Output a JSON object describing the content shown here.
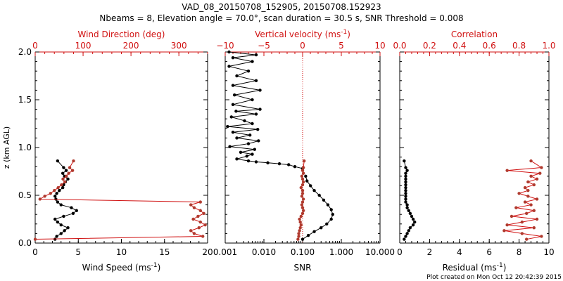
{
  "title": {
    "line1": "VAD_08_20150708_152905, 20150708.152923",
    "line2": "Nbeams = 8, Elevation angle = 70.0°, scan duration = 30.5 s, SNR Threshold = 0.008"
  },
  "footer": "Plot created on Mon Oct 12 20:42:39 2015",
  "colors": {
    "red": "#d01010",
    "brown": "#b03a2e",
    "black": "#000000"
  },
  "chart_data": [
    {
      "type": "line",
      "name": "wind",
      "ylabel": "z (km AGL)",
      "ylim": [
        0,
        2.0
      ],
      "yticks": [
        0.0,
        0.5,
        1.0,
        1.5,
        2.0
      ],
      "ytick_labels": [
        "0.0",
        "0.5",
        "1.0",
        "1.5",
        "2.0"
      ],
      "xlabel_bottom": "Wind Speed (ms",
      "xlabel_bottom_sup": "-1",
      "xlabel_bottom_end": ")",
      "xlim_bottom": [
        0,
        20
      ],
      "xticks_bottom": [
        0,
        5,
        10,
        15,
        20
      ],
      "xtick_labels_bottom": [
        "0",
        "5",
        "10",
        "15",
        "20"
      ],
      "xlabel_top": "Wind Direction (deg)",
      "xlim_top": [
        0,
        360
      ],
      "xticks_top": [
        0,
        100,
        200,
        300
      ],
      "xtick_labels_top": [
        "0",
        "100",
        "200",
        "300"
      ],
      "series": [
        {
          "name": "Wind Speed",
          "axis": "bottom",
          "color": "#000000",
          "x": [
            2.3,
            2.5,
            3.0,
            3.4,
            3.8,
            3.0,
            2.6,
            2.3,
            3.3,
            4.4,
            4.8,
            4.2,
            3.0,
            2.6,
            2.4,
            2.3,
            2.5,
            2.8,
            3.2,
            3.3,
            3.5,
            3.8,
            3.4,
            3.2,
            3.6,
            3.3,
            2.6
          ],
          "y": [
            0.04,
            0.07,
            0.1,
            0.13,
            0.16,
            0.19,
            0.22,
            0.25,
            0.28,
            0.31,
            0.34,
            0.37,
            0.4,
            0.43,
            0.46,
            0.49,
            0.52,
            0.55,
            0.58,
            0.61,
            0.64,
            0.67,
            0.7,
            0.73,
            0.76,
            0.79,
            0.86
          ]
        },
        {
          "name": "Wind Direction",
          "axis": "top",
          "color": "#b03a2e",
          "x": [
            0,
            350,
            332,
            325,
            342,
            355,
            345,
            330,
            340,
            352,
            345,
            332,
            325,
            345,
            10,
            20,
            32,
            40,
            48,
            55,
            62,
            58,
            65,
            70,
            78,
            72,
            80
          ],
          "y": [
            0.04,
            0.07,
            0.1,
            0.13,
            0.16,
            0.19,
            0.22,
            0.25,
            0.28,
            0.31,
            0.34,
            0.37,
            0.4,
            0.43,
            0.46,
            0.49,
            0.52,
            0.55,
            0.58,
            0.61,
            0.64,
            0.67,
            0.7,
            0.73,
            0.76,
            0.79,
            0.86
          ]
        }
      ]
    },
    {
      "type": "line",
      "name": "vertical",
      "ylim": [
        0,
        2.0
      ],
      "xlabel_bottom": "SNR",
      "xscale_bottom": "log",
      "xlim_bottom": [
        0.001,
        10
      ],
      "xticks_bottom": [
        0.001,
        0.01,
        0.1,
        1,
        10
      ],
      "xtick_labels_bottom": [
        "0.001",
        "0.010",
        "0.100",
        "1.000",
        "10.000"
      ],
      "xlabel_top": "Vertical velocity (ms",
      "xlabel_top_sup": "-1",
      "xlabel_top_end": ")",
      "xlim_top": [
        -10,
        10
      ],
      "xticks_top": [
        -10,
        -5,
        0,
        5,
        10
      ],
      "xtick_labels_top": [
        "−10",
        "−5",
        "0",
        "5",
        "10"
      ],
      "zero_line": 0,
      "series": [
        {
          "name": "Vertical velocity",
          "axis": "top",
          "color": "#000000",
          "x": [
            -9.5,
            -6,
            -9,
            -6.5,
            -9.5,
            -7,
            -8.5,
            -6,
            -9,
            -5.5,
            -8.8,
            -6.5,
            -9,
            -5.5,
            -8.6,
            -6,
            -9.2,
            -7.5,
            -6.5,
            -9.7,
            -5.8,
            -9.0,
            -6.8,
            -8.5,
            -5.7,
            -7.0,
            -9.4,
            -6.2,
            -8.0,
            -6.5,
            -7.2,
            -8.5,
            -7.0,
            -6.0,
            -4.5,
            -3.0,
            -1.8,
            -1.0,
            0.0
          ],
          "y": [
            2.0,
            1.97,
            1.94,
            1.9,
            1.85,
            1.8,
            1.75,
            1.7,
            1.65,
            1.6,
            1.55,
            1.5,
            1.45,
            1.4,
            1.38,
            1.35,
            1.32,
            1.28,
            1.25,
            1.22,
            1.19,
            1.16,
            1.13,
            1.1,
            1.07,
            1.04,
            1.01,
            0.98,
            0.95,
            0.93,
            0.91,
            0.88,
            0.86,
            0.85,
            0.84,
            0.83,
            0.82,
            0.8,
            0.78
          ]
        },
        {
          "name": "SNR",
          "axis": "bottom",
          "color": "#000000",
          "x": [
            0.1,
            0.14,
            0.2,
            0.3,
            0.42,
            0.55,
            0.6,
            0.55,
            0.45,
            0.35,
            0.27,
            0.2,
            0.16,
            0.13,
            0.12
          ],
          "y": [
            0.04,
            0.08,
            0.12,
            0.16,
            0.2,
            0.25,
            0.3,
            0.35,
            0.4,
            0.45,
            0.5,
            0.55,
            0.6,
            0.65,
            0.7
          ]
        },
        {
          "name": "Vertical velocity (lower)",
          "axis": "top",
          "color": "#b03a2e",
          "x": [
            -0.6,
            -0.5,
            -0.5,
            -0.4,
            -0.3,
            -0.2,
            -0.3,
            -0.4,
            -0.2,
            0.0,
            0.1,
            0.0,
            -0.1,
            0.0,
            0.1,
            -0.1,
            0.0,
            0.0,
            -0.2,
            0.0,
            0.1,
            0.0,
            -0.1,
            0.1,
            0.0,
            0.1,
            0.2
          ],
          "y": [
            0.04,
            0.07,
            0.1,
            0.13,
            0.16,
            0.19,
            0.22,
            0.25,
            0.28,
            0.31,
            0.34,
            0.37,
            0.4,
            0.43,
            0.46,
            0.49,
            0.52,
            0.55,
            0.58,
            0.61,
            0.64,
            0.67,
            0.7,
            0.73,
            0.76,
            0.79,
            0.86
          ]
        }
      ]
    },
    {
      "type": "line",
      "name": "residual",
      "ylim": [
        0,
        2.0
      ],
      "xlabel_bottom": "Residual (ms",
      "xlabel_bottom_sup": "-1",
      "xlabel_bottom_end": ")",
      "xlim_bottom": [
        0,
        10
      ],
      "xticks_bottom": [
        0,
        2,
        4,
        6,
        8,
        10
      ],
      "xtick_labels_bottom": [
        "0",
        "2",
        "4",
        "6",
        "8",
        "10"
      ],
      "xlabel_top": "Correlation",
      "xlim_top": [
        0,
        1.0
      ],
      "xticks_top": [
        0,
        0.2,
        0.4,
        0.6,
        0.8,
        1.0
      ],
      "xtick_labels_top": [
        "0.0",
        "0.2",
        "0.4",
        "0.6",
        "0.8",
        "1.0"
      ],
      "series": [
        {
          "name": "Residual",
          "axis": "bottom",
          "color": "#000000",
          "x": [
            0.3,
            0.4,
            0.5,
            0.6,
            0.7,
            0.9,
            1.0,
            0.9,
            0.8,
            0.7,
            0.6,
            0.5,
            0.5,
            0.4,
            0.4,
            0.4,
            0.4,
            0.4,
            0.4,
            0.4,
            0.4,
            0.4,
            0.4,
            0.4,
            0.5,
            0.4,
            0.3
          ],
          "y": [
            0.04,
            0.07,
            0.1,
            0.13,
            0.16,
            0.19,
            0.22,
            0.25,
            0.28,
            0.31,
            0.34,
            0.37,
            0.4,
            0.43,
            0.46,
            0.49,
            0.52,
            0.55,
            0.58,
            0.61,
            0.64,
            0.67,
            0.7,
            0.73,
            0.76,
            0.79,
            0.86
          ]
        },
        {
          "name": "Correlation",
          "axis": "top",
          "color": "#b03a2e",
          "x": [
            0.85,
            0.95,
            0.82,
            0.7,
            0.9,
            0.72,
            0.82,
            0.92,
            0.75,
            0.85,
            0.9,
            0.78,
            0.88,
            0.84,
            0.92,
            0.86,
            0.8,
            0.86,
            0.84,
            0.9,
            0.86,
            0.92,
            0.88,
            0.94,
            0.72,
            0.95,
            0.88
          ],
          "y": [
            0.04,
            0.07,
            0.1,
            0.13,
            0.16,
            0.19,
            0.22,
            0.25,
            0.28,
            0.31,
            0.34,
            0.37,
            0.4,
            0.43,
            0.46,
            0.49,
            0.52,
            0.55,
            0.58,
            0.61,
            0.64,
            0.67,
            0.7,
            0.73,
            0.76,
            0.79,
            0.86
          ]
        }
      ]
    }
  ]
}
